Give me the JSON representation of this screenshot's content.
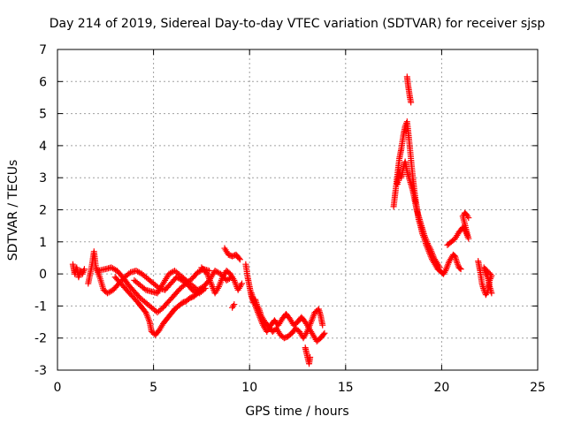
{
  "chart_data": {
    "type": "scatter",
    "title": "Day 214 of 2019, Sidereal Day-to-day VTEC variation (SDTVAR) for receiver sjsp",
    "xlabel": "GPS time / hours",
    "ylabel": "SDTVAR / TECUs",
    "xlim": [
      0,
      25
    ],
    "ylim": [
      -3,
      7
    ],
    "xticks": [
      "0",
      "5",
      "10",
      "15",
      "20",
      "25"
    ],
    "yticks": [
      "-3",
      "-2",
      "-1",
      "0",
      "1",
      "2",
      "3",
      "4",
      "5",
      "6",
      "7"
    ],
    "grid": true,
    "marker": "+",
    "color": "#ff0000",
    "series": [
      {
        "name": "sjsp",
        "segments": [
          [
            [
              0.8,
              0.3
            ],
            [
              0.9,
              0.0
            ],
            [
              1.0,
              0.2
            ],
            [
              1.1,
              -0.1
            ],
            [
              1.2,
              0.1
            ],
            [
              1.3,
              0.0
            ],
            [
              1.4,
              0.15
            ]
          ],
          [
            [
              1.6,
              -0.3
            ],
            [
              1.8,
              0.3
            ],
            [
              1.9,
              0.7
            ],
            [
              2.0,
              0.2
            ],
            [
              2.2,
              -0.1
            ],
            [
              2.4,
              -0.5
            ],
            [
              2.6,
              -0.6
            ],
            [
              2.9,
              -0.5
            ],
            [
              3.2,
              -0.3
            ],
            [
              3.5,
              -0.1
            ],
            [
              3.8,
              0.05
            ],
            [
              4.1,
              0.1
            ],
            [
              4.4,
              0.0
            ],
            [
              4.7,
              -0.15
            ],
            [
              5.0,
              -0.3
            ],
            [
              5.3,
              -0.45
            ],
            [
              5.6,
              -0.5
            ],
            [
              5.9,
              -0.3
            ],
            [
              6.2,
              -0.1
            ],
            [
              6.5,
              -0.2
            ],
            [
              6.8,
              -0.35
            ],
            [
              7.1,
              -0.55
            ],
            [
              7.4,
              -0.6
            ],
            [
              7.7,
              -0.45
            ]
          ],
          [
            [
              2.1,
              0.1
            ],
            [
              2.5,
              0.15
            ],
            [
              2.8,
              0.2
            ],
            [
              3.1,
              0.1
            ],
            [
              3.4,
              -0.1
            ],
            [
              3.7,
              -0.35
            ],
            [
              4.0,
              -0.55
            ],
            [
              4.3,
              -0.75
            ],
            [
              4.6,
              -0.9
            ],
            [
              4.9,
              -1.05
            ],
            [
              5.2,
              -1.2
            ],
            [
              5.5,
              -1.05
            ],
            [
              5.8,
              -0.85
            ],
            [
              6.1,
              -0.65
            ],
            [
              6.4,
              -0.45
            ],
            [
              6.7,
              -0.3
            ],
            [
              7.0,
              -0.15
            ],
            [
              7.3,
              0.05
            ],
            [
              7.6,
              0.15
            ],
            [
              7.9,
              0.1
            ]
          ],
          [
            [
              3.0,
              -0.1
            ],
            [
              3.3,
              -0.3
            ],
            [
              3.6,
              -0.5
            ],
            [
              3.9,
              -0.7
            ],
            [
              4.2,
              -0.9
            ],
            [
              4.4,
              -1.05
            ],
            [
              4.6,
              -1.2
            ],
            [
              4.8,
              -1.5
            ],
            [
              4.9,
              -1.8
            ],
            [
              5.1,
              -1.9
            ],
            [
              5.3,
              -1.75
            ],
            [
              5.5,
              -1.55
            ],
            [
              5.7,
              -1.4
            ],
            [
              5.9,
              -1.25
            ],
            [
              6.1,
              -1.1
            ],
            [
              6.3,
              -1.0
            ],
            [
              6.5,
              -0.9
            ],
            [
              6.7,
              -0.85
            ],
            [
              6.9,
              -0.75
            ],
            [
              7.1,
              -0.7
            ],
            [
              7.3,
              -0.6
            ],
            [
              7.5,
              -0.5
            ]
          ],
          [
            [
              4.0,
              -0.2
            ],
            [
              4.3,
              -0.35
            ],
            [
              4.6,
              -0.5
            ],
            [
              4.9,
              -0.55
            ],
            [
              5.2,
              -0.6
            ],
            [
              5.5,
              -0.3
            ],
            [
              5.8,
              0.0
            ],
            [
              6.1,
              0.1
            ],
            [
              6.4,
              -0.05
            ],
            [
              6.7,
              -0.2
            ],
            [
              7.0,
              -0.35
            ],
            [
              7.3,
              -0.5
            ],
            [
              7.6,
              -0.4
            ],
            [
              7.9,
              -0.2
            ],
            [
              8.2,
              0.1
            ],
            [
              8.5,
              0.0
            ],
            [
              8.8,
              -0.2
            ],
            [
              9.1,
              -0.1
            ]
          ],
          [
            [
              7.5,
              0.2
            ],
            [
              7.8,
              0.0
            ],
            [
              8.0,
              -0.3
            ],
            [
              8.2,
              -0.6
            ],
            [
              8.4,
              -0.4
            ],
            [
              8.6,
              -0.1
            ],
            [
              8.8,
              0.1
            ],
            [
              9.0,
              0.0
            ],
            [
              9.2,
              -0.2
            ],
            [
              9.4,
              -0.5
            ],
            [
              9.6,
              -0.3
            ]
          ],
          [
            [
              8.7,
              0.8
            ],
            [
              8.9,
              0.6
            ],
            [
              9.1,
              0.55
            ],
            [
              9.3,
              0.6
            ],
            [
              9.5,
              0.45
            ]
          ],
          [
            [
              9.1,
              -1.05
            ],
            [
              9.2,
              -0.95
            ]
          ],
          [
            [
              9.8,
              0.3
            ],
            [
              9.9,
              -0.1
            ],
            [
              10.0,
              -0.4
            ],
            [
              10.1,
              -0.7
            ],
            [
              10.2,
              -0.9
            ],
            [
              10.3,
              -0.8
            ],
            [
              10.4,
              -1.0
            ],
            [
              10.5,
              -1.1
            ],
            [
              10.6,
              -1.3
            ],
            [
              10.8,
              -1.5
            ],
            [
              11.0,
              -1.65
            ],
            [
              11.2,
              -1.8
            ],
            [
              11.4,
              -1.7
            ],
            [
              11.6,
              -1.9
            ],
            [
              11.8,
              -2.0
            ],
            [
              12.0,
              -1.95
            ],
            [
              12.2,
              -1.85
            ],
            [
              12.4,
              -1.7
            ],
            [
              12.6,
              -1.8
            ],
            [
              12.8,
              -2.0
            ],
            [
              13.0,
              -1.8
            ],
            [
              13.2,
              -1.5
            ],
            [
              13.4,
              -1.2
            ],
            [
              13.6,
              -1.1
            ],
            [
              13.7,
              -1.3
            ],
            [
              13.8,
              -1.6
            ]
          ],
          [
            [
              10.1,
              -0.6
            ],
            [
              10.3,
              -1.0
            ],
            [
              10.5,
              -1.3
            ],
            [
              10.7,
              -1.6
            ],
            [
              10.9,
              -1.8
            ],
            [
              11.1,
              -1.6
            ],
            [
              11.3,
              -1.45
            ],
            [
              11.5,
              -1.6
            ],
            [
              11.7,
              -1.4
            ],
            [
              11.9,
              -1.25
            ],
            [
              12.1,
              -1.4
            ],
            [
              12.3,
              -1.6
            ],
            [
              12.5,
              -1.5
            ],
            [
              12.7,
              -1.35
            ],
            [
              12.9,
              -1.5
            ],
            [
              13.1,
              -1.7
            ],
            [
              13.3,
              -1.9
            ],
            [
              13.5,
              -2.1
            ],
            [
              13.7,
              -2.0
            ],
            [
              13.9,
              -1.85
            ]
          ],
          [
            [
              12.9,
              -2.3
            ],
            [
              13.0,
              -2.55
            ],
            [
              13.1,
              -2.8
            ],
            [
              13.15,
              -2.6
            ]
          ],
          [
            [
              17.5,
              2.1
            ],
            [
              17.6,
              2.6
            ],
            [
              17.7,
              3.1
            ],
            [
              17.8,
              3.6
            ],
            [
              17.9,
              3.9
            ],
            [
              18.0,
              4.3
            ],
            [
              18.1,
              4.6
            ],
            [
              18.2,
              4.75
            ],
            [
              18.3,
              4.2
            ],
            [
              18.4,
              3.6
            ],
            [
              18.5,
              3.0
            ],
            [
              18.6,
              2.5
            ],
            [
              18.7,
              2.1
            ],
            [
              18.8,
              1.7
            ],
            [
              18.9,
              1.5
            ],
            [
              19.0,
              1.25
            ],
            [
              19.1,
              1.1
            ],
            [
              19.2,
              0.9
            ],
            [
              19.3,
              0.75
            ],
            [
              19.4,
              0.6
            ],
            [
              19.5,
              0.45
            ],
            [
              19.6,
              0.35
            ],
            [
              19.7,
              0.25
            ],
            [
              19.8,
              0.15
            ],
            [
              19.9,
              0.1
            ],
            [
              20.0,
              0.05
            ],
            [
              20.1,
              0.0
            ],
            [
              20.2,
              0.1
            ],
            [
              20.3,
              0.25
            ],
            [
              20.4,
              0.4
            ],
            [
              20.5,
              0.5
            ],
            [
              20.6,
              0.6
            ],
            [
              20.7,
              0.55
            ],
            [
              20.8,
              0.35
            ],
            [
              20.9,
              0.2
            ],
            [
              21.0,
              0.15
            ]
          ],
          [
            [
              17.7,
              2.8
            ],
            [
              17.8,
              3.2
            ],
            [
              17.9,
              3.0
            ],
            [
              18.0,
              3.3
            ],
            [
              18.1,
              3.5
            ],
            [
              18.2,
              3.2
            ],
            [
              18.3,
              3.0
            ],
            [
              18.4,
              2.8
            ],
            [
              18.5,
              2.6
            ],
            [
              18.6,
              2.3
            ],
            [
              18.7,
              2.0
            ],
            [
              18.8,
              1.8
            ],
            [
              18.9,
              1.6
            ],
            [
              19.0,
              1.4
            ],
            [
              19.1,
              1.2
            ],
            [
              19.2,
              1.05
            ],
            [
              19.3,
              0.9
            ],
            [
              19.4,
              0.8
            ],
            [
              19.5,
              0.65
            ],
            [
              19.6,
              0.5
            ],
            [
              19.7,
              0.4
            ],
            [
              19.8,
              0.3
            ],
            [
              19.9,
              0.2
            ]
          ],
          [
            [
              18.2,
              6.15
            ],
            [
              18.25,
              5.9
            ],
            [
              18.3,
              5.7
            ],
            [
              18.35,
              5.5
            ],
            [
              18.4,
              5.35
            ]
          ],
          [
            [
              20.3,
              0.9
            ],
            [
              20.5,
              1.0
            ],
            [
              20.7,
              1.1
            ],
            [
              20.9,
              1.3
            ],
            [
              21.1,
              1.45
            ],
            [
              21.2,
              1.4
            ],
            [
              21.3,
              1.25
            ],
            [
              21.4,
              1.1
            ],
            [
              21.1,
              1.8
            ],
            [
              21.2,
              1.9
            ],
            [
              21.3,
              1.85
            ],
            [
              21.4,
              1.75
            ]
          ],
          [
            [
              21.9,
              0.4
            ],
            [
              22.0,
              0.1
            ],
            [
              22.1,
              -0.3
            ],
            [
              22.2,
              -0.5
            ],
            [
              22.3,
              -0.65
            ],
            [
              22.4,
              -0.55
            ],
            [
              22.5,
              -0.2
            ],
            [
              22.6,
              -0.05
            ],
            [
              22.2,
              0.2
            ],
            [
              22.3,
              0.0
            ],
            [
              22.4,
              -0.1
            ],
            [
              22.5,
              -0.4
            ],
            [
              22.6,
              -0.6
            ]
          ]
        ]
      }
    ]
  }
}
